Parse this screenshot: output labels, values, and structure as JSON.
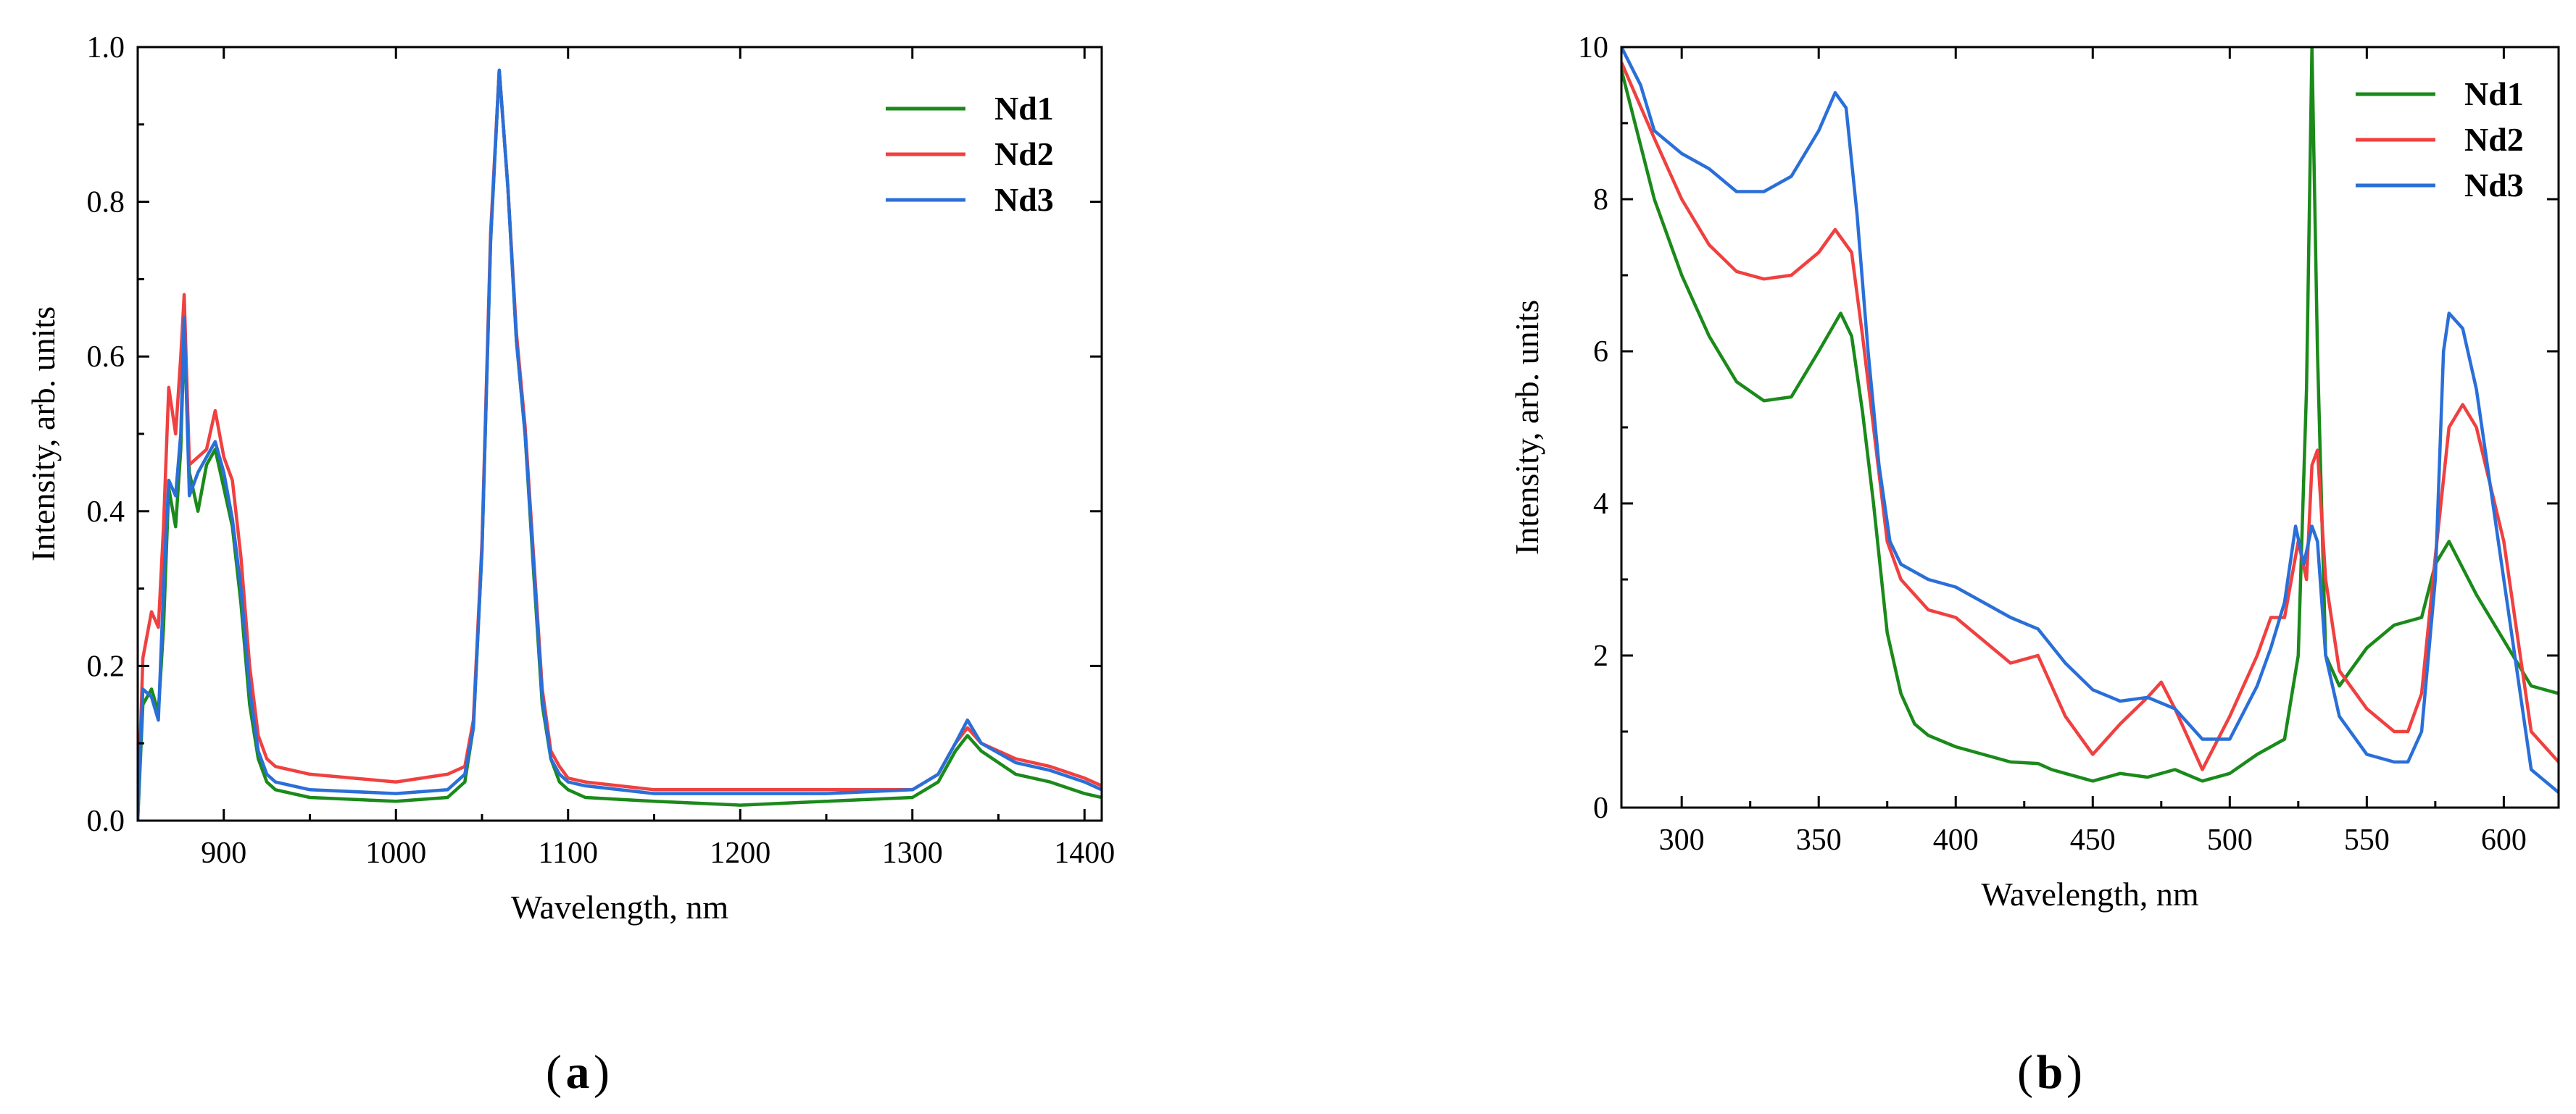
{
  "figure": {
    "panel_a_label": "a",
    "panel_b_label": "b"
  },
  "colors": {
    "Nd1": "#1a8a1a",
    "Nd2": "#f04040",
    "Nd3": "#2a6fd8",
    "axis": "#000000"
  },
  "chart_data": [
    {
      "type": "line",
      "panel": "a",
      "title": "",
      "xlabel": "Wavelength, nm",
      "ylabel": "Intensity, arb. units",
      "xlim": [
        850,
        1410
      ],
      "ylim": [
        0,
        1.0
      ],
      "xticks": [
        900,
        1000,
        1100,
        1200,
        1300,
        1400
      ],
      "xtick_labels": [
        "900",
        "1000",
        "1100",
        "1200",
        "1300",
        "1400"
      ],
      "yticks": [
        0,
        0.2,
        0.4,
        0.6,
        0.8,
        1.0
      ],
      "ytick_labels": [
        "0.0",
        "0.2",
        "0.4",
        "0.6",
        "0.8",
        "1.0"
      ],
      "legend_position": "top-right",
      "grid": false,
      "series": [
        {
          "name": "Nd1",
          "color": "#1a8a1a",
          "x": [
            850,
            853,
            858,
            862,
            865,
            868,
            872,
            875,
            877,
            880,
            885,
            890,
            895,
            900,
            905,
            910,
            915,
            920,
            925,
            930,
            950,
            1000,
            1030,
            1040,
            1045,
            1050,
            1055,
            1060,
            1065,
            1070,
            1075,
            1080,
            1085,
            1090,
            1095,
            1100,
            1110,
            1150,
            1200,
            1250,
            1300,
            1315,
            1325,
            1332,
            1340,
            1360,
            1380,
            1400,
            1410
          ],
          "y": [
            0.0,
            0.15,
            0.17,
            0.14,
            0.25,
            0.43,
            0.38,
            0.48,
            0.63,
            0.45,
            0.4,
            0.46,
            0.48,
            0.43,
            0.38,
            0.28,
            0.15,
            0.08,
            0.05,
            0.04,
            0.03,
            0.025,
            0.03,
            0.05,
            0.12,
            0.35,
            0.75,
            0.97,
            0.82,
            0.62,
            0.5,
            0.32,
            0.15,
            0.08,
            0.05,
            0.04,
            0.03,
            0.025,
            0.02,
            0.025,
            0.03,
            0.05,
            0.09,
            0.11,
            0.09,
            0.06,
            0.05,
            0.035,
            0.03
          ]
        },
        {
          "name": "Nd2",
          "color": "#f04040",
          "x": [
            850,
            853,
            858,
            862,
            865,
            868,
            872,
            875,
            877,
            880,
            885,
            890,
            895,
            900,
            905,
            910,
            915,
            920,
            925,
            930,
            950,
            1000,
            1030,
            1040,
            1045,
            1050,
            1055,
            1060,
            1065,
            1070,
            1075,
            1080,
            1085,
            1090,
            1095,
            1100,
            1110,
            1150,
            1200,
            1250,
            1300,
            1315,
            1325,
            1332,
            1340,
            1360,
            1380,
            1400,
            1410
          ],
          "y": [
            0.0,
            0.21,
            0.27,
            0.25,
            0.38,
            0.56,
            0.5,
            0.6,
            0.68,
            0.46,
            0.47,
            0.48,
            0.53,
            0.47,
            0.44,
            0.34,
            0.2,
            0.11,
            0.08,
            0.07,
            0.06,
            0.05,
            0.06,
            0.07,
            0.13,
            0.36,
            0.76,
            0.97,
            0.82,
            0.63,
            0.51,
            0.34,
            0.17,
            0.09,
            0.07,
            0.055,
            0.05,
            0.04,
            0.04,
            0.04,
            0.04,
            0.06,
            0.1,
            0.12,
            0.1,
            0.08,
            0.07,
            0.055,
            0.045
          ]
        },
        {
          "name": "Nd3",
          "color": "#2a6fd8",
          "x": [
            850,
            853,
            858,
            862,
            865,
            868,
            872,
            875,
            877,
            880,
            885,
            890,
            895,
            900,
            905,
            910,
            915,
            920,
            925,
            930,
            950,
            1000,
            1030,
            1040,
            1045,
            1050,
            1055,
            1060,
            1065,
            1070,
            1075,
            1080,
            1085,
            1090,
            1095,
            1100,
            1110,
            1150,
            1200,
            1250,
            1300,
            1315,
            1325,
            1332,
            1340,
            1360,
            1380,
            1400,
            1410
          ],
          "y": [
            0.0,
            0.17,
            0.16,
            0.13,
            0.3,
            0.44,
            0.42,
            0.5,
            0.65,
            0.42,
            0.45,
            0.47,
            0.49,
            0.45,
            0.39,
            0.3,
            0.17,
            0.09,
            0.06,
            0.05,
            0.04,
            0.035,
            0.04,
            0.06,
            0.12,
            0.35,
            0.75,
            0.97,
            0.82,
            0.62,
            0.5,
            0.33,
            0.16,
            0.08,
            0.06,
            0.05,
            0.045,
            0.035,
            0.035,
            0.035,
            0.04,
            0.06,
            0.1,
            0.13,
            0.1,
            0.075,
            0.065,
            0.05,
            0.04
          ]
        }
      ]
    },
    {
      "type": "line",
      "panel": "b",
      "title": "",
      "xlabel": "Wavelength, nm",
      "ylabel": "Intensity, arb. units",
      "xlim": [
        278,
        620
      ],
      "ylim": [
        0,
        10
      ],
      "xticks": [
        300,
        350,
        400,
        450,
        500,
        550,
        600
      ],
      "xtick_labels": [
        "300",
        "350",
        "400",
        "450",
        "500",
        "550",
        "600"
      ],
      "yticks": [
        0,
        2,
        4,
        6,
        8,
        10
      ],
      "ytick_labels": [
        "0",
        "2",
        "4",
        "6",
        "8",
        "10"
      ],
      "legend_position": "top-right",
      "grid": false,
      "series": [
        {
          "name": "Nd1",
          "color": "#1a8a1a",
          "x": [
            278,
            290,
            300,
            310,
            320,
            330,
            340,
            350,
            358,
            362,
            366,
            370,
            375,
            380,
            385,
            390,
            400,
            410,
            420,
            430,
            435,
            440,
            450,
            460,
            470,
            480,
            490,
            500,
            510,
            515,
            520,
            525,
            528,
            530,
            532,
            535,
            540,
            550,
            560,
            570,
            575,
            580,
            590,
            600,
            610,
            620
          ],
          "y": [
            9.7,
            8.0,
            7.0,
            6.2,
            5.6,
            5.35,
            5.4,
            6.0,
            6.5,
            6.2,
            5.2,
            4.0,
            2.3,
            1.5,
            1.1,
            0.95,
            0.8,
            0.7,
            0.6,
            0.58,
            0.5,
            0.45,
            0.35,
            0.45,
            0.4,
            0.5,
            0.35,
            0.45,
            0.7,
            0.8,
            0.9,
            2.0,
            5.5,
            10.0,
            6.0,
            2.0,
            1.6,
            2.1,
            2.4,
            2.5,
            3.2,
            3.5,
            2.8,
            2.2,
            1.6,
            1.5
          ]
        },
        {
          "name": "Nd2",
          "color": "#f04040",
          "x": [
            278,
            290,
            300,
            310,
            320,
            330,
            340,
            350,
            356,
            362,
            366,
            370,
            375,
            380,
            385,
            390,
            400,
            410,
            420,
            430,
            435,
            440,
            450,
            460,
            470,
            475,
            480,
            490,
            500,
            510,
            515,
            520,
            525,
            528,
            530,
            532,
            535,
            540,
            550,
            560,
            565,
            570,
            575,
            580,
            585,
            590,
            600,
            610,
            620
          ],
          "y": [
            9.8,
            8.8,
            8.0,
            7.4,
            7.05,
            6.95,
            7.0,
            7.3,
            7.6,
            7.3,
            6.2,
            5.0,
            3.5,
            3.0,
            2.8,
            2.6,
            2.5,
            2.2,
            1.9,
            2.0,
            1.6,
            1.2,
            0.7,
            1.1,
            1.45,
            1.65,
            1.3,
            0.5,
            1.2,
            2.0,
            2.5,
            2.5,
            3.5,
            3.0,
            4.5,
            4.7,
            3.0,
            1.8,
            1.3,
            1.0,
            1.0,
            1.5,
            3.3,
            5.0,
            5.3,
            5.0,
            3.5,
            1.0,
            0.6
          ]
        },
        {
          "name": "Nd3",
          "color": "#2a6fd8",
          "x": [
            278,
            285,
            290,
            300,
            310,
            320,
            330,
            340,
            350,
            356,
            360,
            364,
            368,
            372,
            376,
            380,
            390,
            400,
            410,
            420,
            430,
            440,
            450,
            460,
            470,
            480,
            490,
            500,
            510,
            515,
            520,
            524,
            527,
            530,
            532,
            535,
            540,
            550,
            560,
            565,
            570,
            575,
            578,
            580,
            585,
            590,
            600,
            610,
            620
          ],
          "y": [
            10.0,
            9.5,
            8.9,
            8.6,
            8.4,
            8.1,
            8.1,
            8.3,
            8.9,
            9.4,
            9.2,
            7.8,
            6.0,
            4.5,
            3.5,
            3.2,
            3.0,
            2.9,
            2.7,
            2.5,
            2.35,
            1.9,
            1.55,
            1.4,
            1.45,
            1.3,
            0.9,
            0.9,
            1.6,
            2.1,
            2.7,
            3.7,
            3.2,
            3.7,
            3.5,
            2.0,
            1.2,
            0.7,
            0.6,
            0.6,
            1.0,
            3.0,
            6.0,
            6.5,
            6.3,
            5.5,
            3.0,
            0.5,
            0.2
          ]
        }
      ]
    }
  ]
}
